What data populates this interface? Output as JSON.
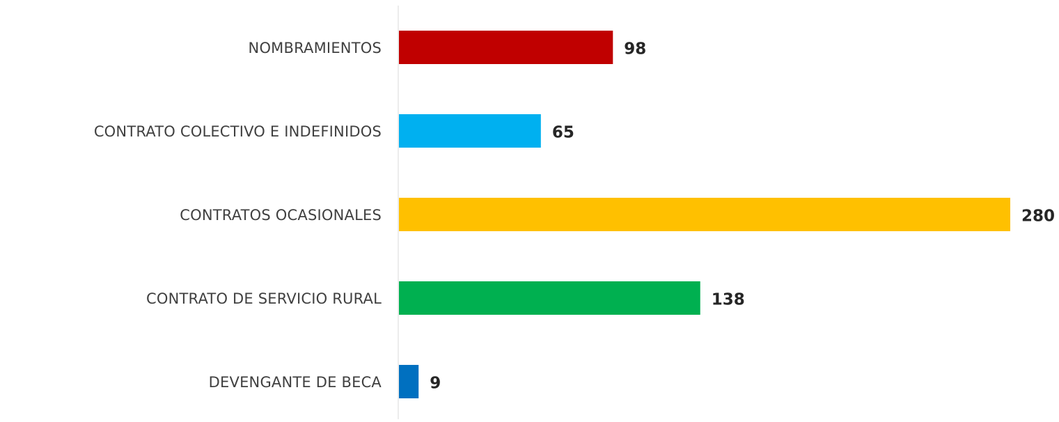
{
  "chart_data": {
    "type": "bar",
    "orientation": "horizontal",
    "categories": [
      "NOMBRAMIENTOS",
      "CONTRATO COLECTIVO E INDEFINIDOS",
      "CONTRATOS OCASIONALES",
      "CONTRATO DE SERVICIO RURAL",
      "DEVENGANTE DE BECA"
    ],
    "values": [
      98,
      65,
      280,
      138,
      9
    ],
    "colors": [
      "#c00000",
      "#00b0f0",
      "#ffc000",
      "#00b050",
      "#0070c0"
    ]
  }
}
